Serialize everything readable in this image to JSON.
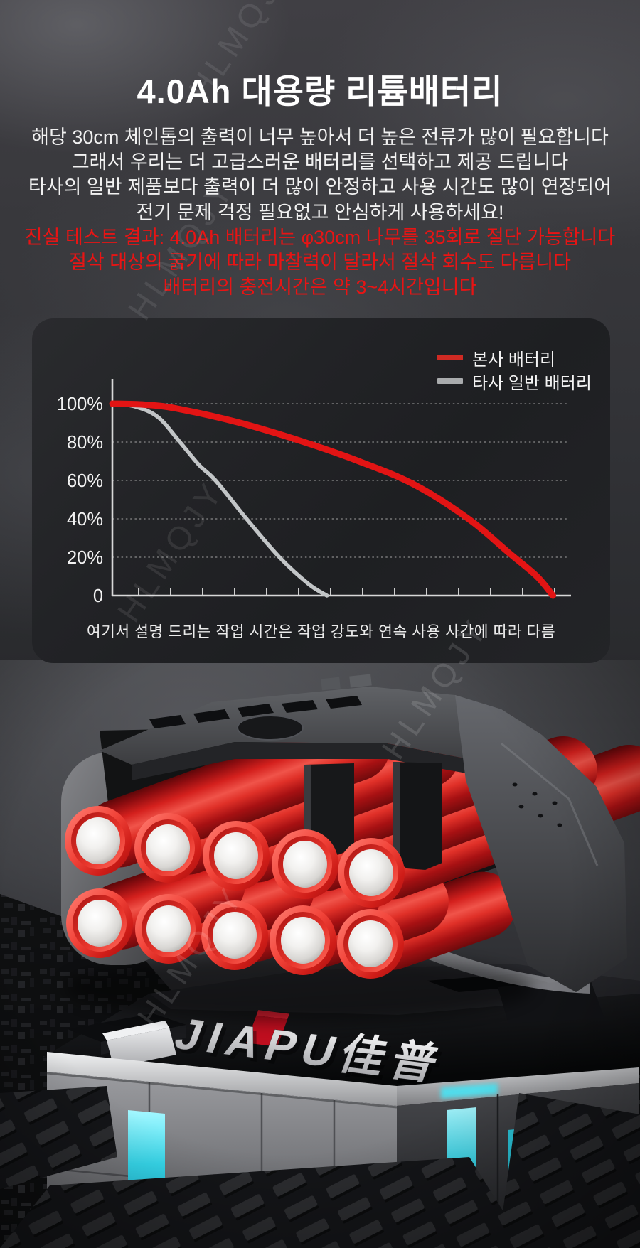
{
  "title": "4.0Ah 대용량 리튬배터리",
  "intro": {
    "white_lines": [
      "해당 30cm 체인톱의 출력이 너무 높아서 더 높은 전류가 많이 필요합니다",
      "그래서 우리는 더 고급스러운 배터리를 선택하고 제공 드립니다",
      "타사의 일반 제품보다 출력이 더 많이 안정하고 사용 시간도 많이 연장되어",
      "전기 문제 걱정 필요없고 안심하게 사용하세요!"
    ],
    "red_lines": [
      "진실 테스트 결과: 4.0Ah 배터리는 φ30cm 나무를 35회로 절단 가능합니다",
      "절삭 대상의 굵기에 따라 마찰력이 달라서 절삭 회수도 다릅니다",
      "배터리의 충전시간은 약 3~4시간입니다"
    ],
    "red_color": "#e81414"
  },
  "chart_panel": {
    "caption": "여기서 설명 드리는 작업 시간은 작업 강도와 연속 사용 사간에 따라 다름"
  },
  "chart_data": {
    "type": "line",
    "title": "",
    "xlabel": "",
    "ylabel": "",
    "ylim": [
      0,
      100
    ],
    "grid": "dotted horizontal gridlines",
    "legend_position": "top-right",
    "yticks": [
      {
        "value": 100,
        "label": "100%"
      },
      {
        "value": 80,
        "label": "80%"
      },
      {
        "value": 60,
        "label": "60%"
      },
      {
        "value": 40,
        "label": "40%"
      },
      {
        "value": 20,
        "label": "20%"
      },
      {
        "value": 0,
        "label": "0"
      }
    ],
    "x_axis": {
      "tick_count": 14,
      "labels_shown": false,
      "range_pct": [
        0,
        100
      ]
    },
    "series": [
      {
        "name": "본사 배터리",
        "color": "#e21414",
        "swatch_color": "#cf2a23",
        "width": 9,
        "points": [
          [
            0,
            100
          ],
          [
            7,
            99.5
          ],
          [
            14,
            97.5
          ],
          [
            28,
            90
          ],
          [
            42,
            80
          ],
          [
            54,
            70
          ],
          [
            66,
            58
          ],
          [
            78,
            40
          ],
          [
            87,
            22
          ],
          [
            93,
            10
          ],
          [
            96.5,
            0
          ]
        ]
      },
      {
        "name": "타사 일반 배터리",
        "color": "#c2c5c7",
        "swatch_color": "#a9abad",
        "width": 5.5,
        "points": [
          [
            0,
            100
          ],
          [
            5,
            98.5
          ],
          [
            10,
            93
          ],
          [
            14.8,
            80
          ],
          [
            19,
            68
          ],
          [
            22.6,
            60
          ],
          [
            29.4,
            40
          ],
          [
            36.6,
            20
          ],
          [
            43,
            6
          ],
          [
            47,
            0
          ]
        ]
      }
    ]
  },
  "product_photo": {
    "brand_text": "JIAPU佳普",
    "visible_cells": 10,
    "cell_ring_color": "#e02a22",
    "accent_color": "#35dff2"
  },
  "watermark": "HLMQJY"
}
